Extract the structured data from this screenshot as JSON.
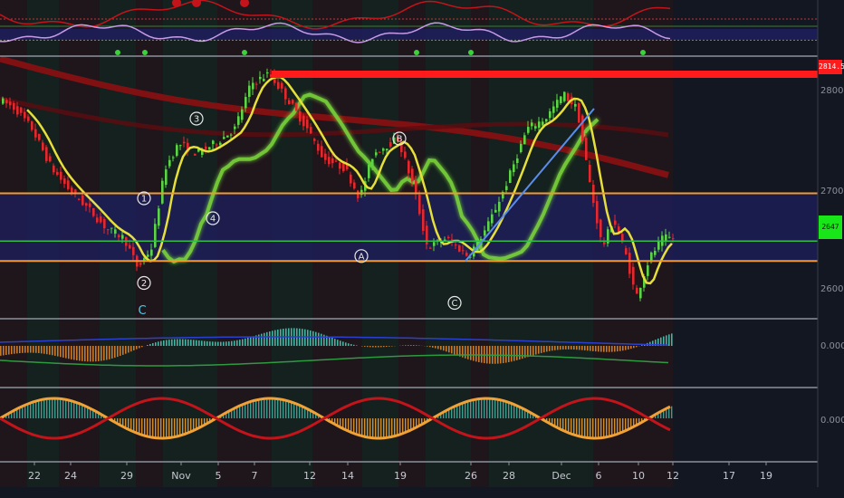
{
  "colors": {
    "bg": "#131722",
    "up": "#5ad644",
    "down": "#e8262b",
    "ma_fast": "#e6df3a",
    "ma_mid": "#7cd83a",
    "ma_slow": "#8b0f12",
    "level": "#f29a2e",
    "mid_level": "#2fbf4a",
    "band": "#1d1e5a",
    "trend": "#5b8de8",
    "resistance": "#ff1b1b",
    "wave": "#e8e8e8",
    "osc1_up": "#44b3a3",
    "osc1_down": "#c77a2c",
    "osc2_hist": "#c8c8c8",
    "osc2_orange": "#f1a236",
    "osc2_red": "#c2141a",
    "signal_blue": "#2b3fd1",
    "signal_green": "#2e9a40"
  },
  "price_labels": {
    "resistance": "2814.50",
    "current": "2647"
  },
  "axes": {
    "price_ticks": [
      "2800.00",
      "2700.00",
      "2600.00"
    ],
    "osc1_tick": "0.0000",
    "osc2_tick": "0.0000",
    "time_labels": [
      "22",
      "24",
      "29",
      "Nov",
      "5",
      "7",
      "12",
      "14",
      "19",
      "26",
      "28",
      "Dec",
      "6",
      "10",
      "12",
      "17",
      "19"
    ]
  },
  "wave_labels": [
    "1",
    "2",
    "3",
    "4",
    "A",
    "B",
    "C",
    "C"
  ],
  "chart_data": [
    {
      "type": "line",
      "title": "",
      "xlabel": "",
      "ylabel": "",
      "x": [
        "22",
        "24",
        "29",
        "Nov",
        "5",
        "7",
        "12",
        "14",
        "19",
        "26",
        "28",
        "Dec",
        "6",
        "10",
        "12"
      ],
      "ylim": [
        2570,
        2830
      ],
      "levels": {
        "resistance": 2814.5,
        "upper": 2695,
        "mid": 2647,
        "lower": 2627
      },
      "series": [
        {
          "name": "",
          "values": [
            2790,
            2700,
            2660,
            2745,
            2750,
            2805,
            2720,
            2715,
            2680,
            2632,
            2740,
            2775,
            2690,
            2590,
            2650
          ]
        }
      ],
      "wave_labels": [
        {
          "text": "3",
          "x": "Nov"
        },
        {
          "text": "1",
          "x": "29"
        },
        {
          "text": "4",
          "x": "5"
        },
        {
          "text": "2",
          "x": "29"
        },
        {
          "text": "B",
          "x": "19"
        },
        {
          "text": "A",
          "x": "14"
        },
        {
          "text": "C",
          "x": "26"
        }
      ]
    },
    {
      "type": "bar",
      "title": "",
      "ylabel": "0.0000"
    },
    {
      "type": "bar",
      "title": "",
      "ylabel": "0.0000"
    }
  ]
}
